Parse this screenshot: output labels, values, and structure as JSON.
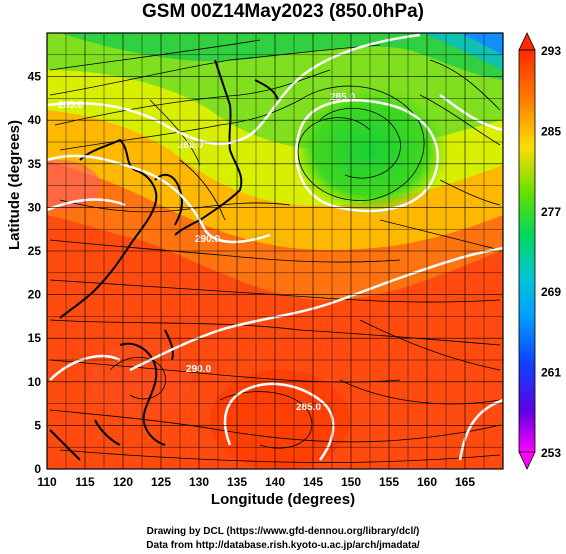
{
  "title": "GSM 00Z14May2023 (850.0hPa)",
  "x_axis": {
    "label": "Longitude (degrees)",
    "ticks": [
      110,
      115,
      120,
      125,
      130,
      135,
      140,
      145,
      150,
      155,
      160,
      165
    ]
  },
  "y_axis": {
    "label": "Latitude  (degrees)",
    "ticks": [
      0,
      5,
      10,
      15,
      20,
      25,
      30,
      35,
      40,
      45
    ]
  },
  "colorbar": {
    "ticks": [
      293,
      285,
      277,
      269,
      261,
      253
    ],
    "min": 253,
    "max": 293,
    "colors": [
      "#ff00ff",
      "#3b00ff",
      "#00a0ff",
      "#00e0a0",
      "#20e040",
      "#c0ff00",
      "#ffe000",
      "#ff8000",
      "#ff3000"
    ]
  },
  "contour_labels": [
    {
      "text": "285.0"
    },
    {
      "text": "280.0"
    },
    {
      "text": "285.0"
    },
    {
      "text": "290.0"
    },
    {
      "text": "290.0"
    },
    {
      "text": "285.0"
    }
  ],
  "credits": {
    "line1": "Drawing by DCL (https://www.gfd-dennou.org/library/dcl/)",
    "line2": "Data from http://database.rish.kyoto-u.ac.jp/arch/jmadata/"
  }
}
